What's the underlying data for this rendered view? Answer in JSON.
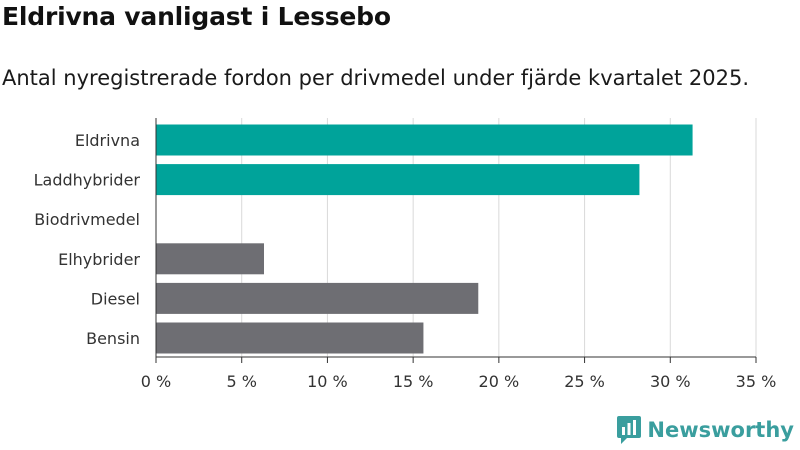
{
  "chart_data": {
    "type": "bar",
    "orientation": "horizontal",
    "title": "Eldrivna vanligast i Lessebo",
    "subtitle": "Antal nyregistrerade fordon per drivmedel under fjärde kvartalet 2025.",
    "categories": [
      "Eldrivna",
      "Laddhybrider",
      "Biodrivmedel",
      "Elhybrider",
      "Diesel",
      "Bensin"
    ],
    "values": [
      31.3,
      28.2,
      0,
      6.3,
      18.8,
      15.6
    ],
    "colors": [
      "#00a39a",
      "#00a39a",
      "#6e6e73",
      "#6e6e73",
      "#6e6e73",
      "#6e6e73"
    ],
    "xlim": [
      0,
      35
    ],
    "xticks": [
      0,
      5,
      10,
      15,
      20,
      25,
      30,
      35
    ],
    "xtick_labels": [
      "0 %",
      "5 %",
      "10 %",
      "15 %",
      "20 %",
      "25 %",
      "30 %",
      "35 %"
    ],
    "xlabel": "",
    "ylabel": "",
    "grid": true
  },
  "brand": {
    "name": "Newsworthy",
    "color": "#3a9e9e",
    "icon": "newsworthy-logo-icon"
  }
}
